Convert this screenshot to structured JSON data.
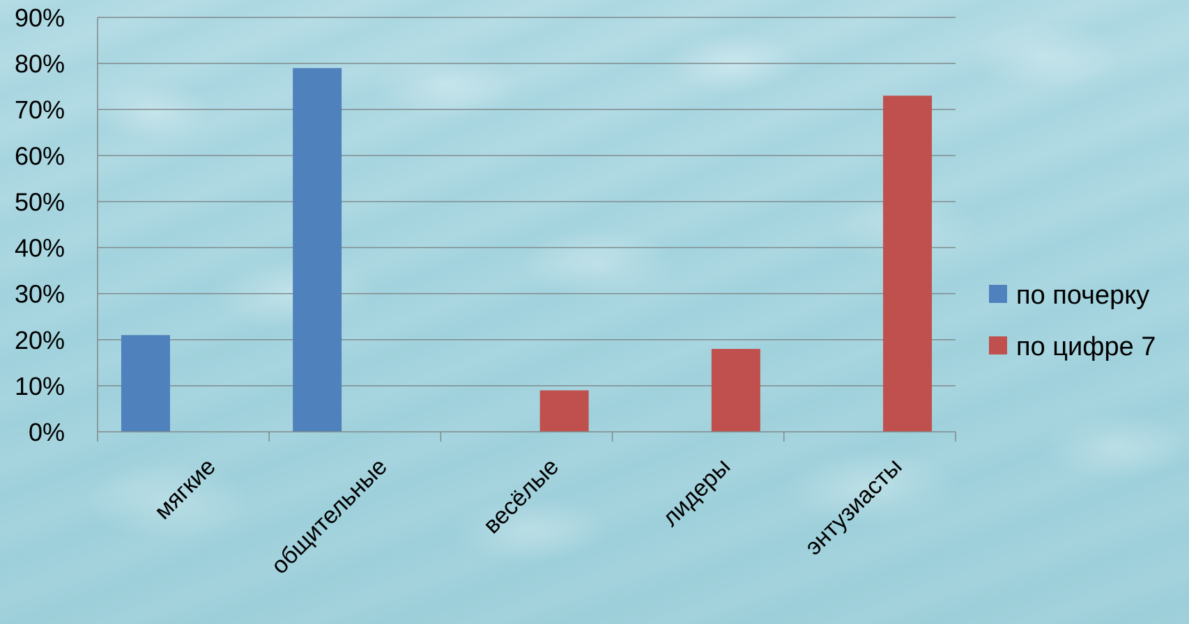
{
  "chart_data": {
    "type": "bar",
    "categories": [
      "мягкие",
      "общительные",
      "весёлые",
      "лидеры",
      "энтузиасты"
    ],
    "series": [
      {
        "name": "по почерку",
        "color": "#4f81bd",
        "values": [
          21,
          79,
          null,
          null,
          null
        ]
      },
      {
        "name": "по цифре 7",
        "color": "#c0504d",
        "values": [
          null,
          null,
          9,
          18,
          73
        ]
      }
    ],
    "y_ticks": [
      "0%",
      "10%",
      "20%",
      "30%",
      "40%",
      "50%",
      "60%",
      "70%",
      "80%",
      "90%"
    ],
    "ylim": [
      0,
      90
    ],
    "y_unit": "%",
    "grid": true,
    "legend_position": "right",
    "title": "",
    "xlabel": "",
    "ylabel": ""
  }
}
